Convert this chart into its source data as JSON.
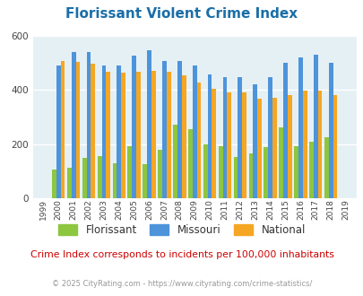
{
  "title": "Florissant Violent Crime Index",
  "title_color": "#1a6ea8",
  "years": [
    1999,
    2000,
    2001,
    2002,
    2003,
    2004,
    2005,
    2006,
    2007,
    2008,
    2009,
    2010,
    2011,
    2012,
    2013,
    2014,
    2015,
    2016,
    2017,
    2018,
    2019
  ],
  "florissant": [
    0,
    107,
    112,
    148,
    155,
    130,
    193,
    125,
    180,
    270,
    255,
    198,
    192,
    152,
    165,
    190,
    260,
    193,
    210,
    224,
    0
  ],
  "missouri": [
    0,
    490,
    540,
    540,
    490,
    490,
    525,
    545,
    505,
    505,
    490,
    458,
    445,
    448,
    420,
    445,
    498,
    520,
    528,
    500,
    0
  ],
  "national": [
    0,
    505,
    502,
    495,
    468,
    462,
    467,
    470,
    465,
    453,
    427,
    403,
    390,
    390,
    368,
    372,
    380,
    397,
    396,
    381,
    0
  ],
  "florissant_color": "#8dc63f",
  "missouri_color": "#4d94db",
  "national_color": "#f5a623",
  "plot_bg_color": "#e5f0f5",
  "ylim": [
    0,
    600
  ],
  "yticks": [
    0,
    200,
    400,
    600
  ],
  "footnote": "Crime Index corresponds to incidents per 100,000 inhabitants",
  "footnote_color": "#cc0000",
  "copyright": "© 2025 CityRating.com - https://www.cityrating.com/crime-statistics/",
  "copyright_color": "#999999"
}
